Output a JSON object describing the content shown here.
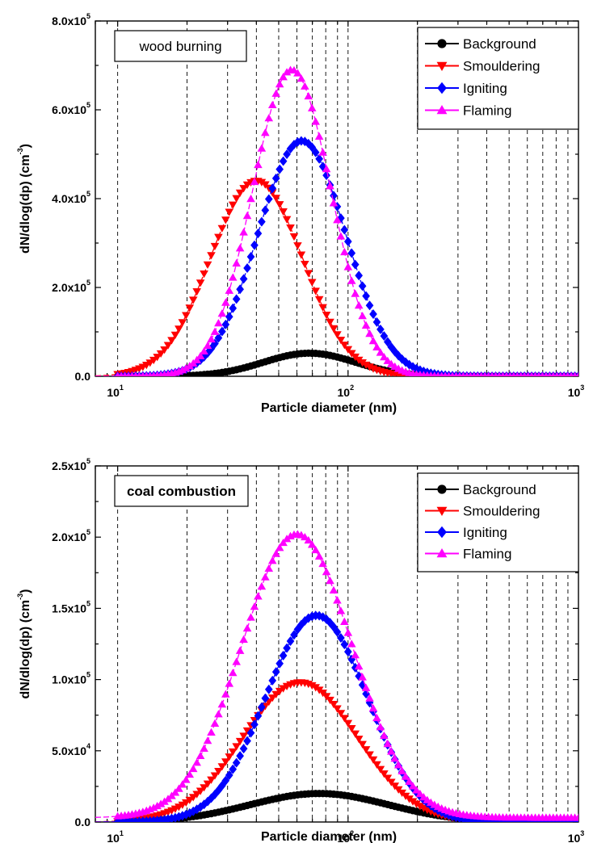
{
  "chart_data": [
    {
      "type": "line",
      "x_scale": "log",
      "xlim": [
        8,
        1000
      ],
      "ylim": [
        0,
        800000
      ],
      "grid": "dashed vertical lines at 10, 20, 30, 40, 50, 60, 70, 80, 90, 100, 200, 300, 400, 500, 600, 700, 800, 900",
      "legend_position": "top-right",
      "box_label": "wood burning",
      "xlabel": "Particle diameter (nm)",
      "ylabel": {
        "main": "dN/dlog(dp) (cm",
        "sup": "-3",
        "end": ")"
      },
      "x_ticks": [
        {
          "value": 10,
          "base": "10",
          "exp": "1"
        },
        {
          "value": 100,
          "base": "10",
          "exp": "2"
        },
        {
          "value": 1000,
          "base": "10",
          "exp": "3"
        }
      ],
      "y_ticks": [
        {
          "value": 0,
          "label": "0.0",
          "exp": ""
        },
        {
          "value": 200000,
          "label": "2.0x10",
          "exp": "5"
        },
        {
          "value": 400000,
          "label": "4.0x10",
          "exp": "5"
        },
        {
          "value": 600000,
          "label": "6.0x10",
          "exp": "5"
        },
        {
          "value": 800000,
          "label": "8.0x10",
          "exp": "5"
        }
      ],
      "series": [
        {
          "name": "Background",
          "color": "#000000",
          "marker": "circle",
          "peak_x": 68,
          "peak_y": 52000,
          "sigma": 0.2
        },
        {
          "name": "Smouldering",
          "color": "#ff0000",
          "marker": "triangle-down",
          "peak_x": 40,
          "peak_y": 440000,
          "sigma": 0.2
        },
        {
          "name": "Igniting",
          "color": "#0000ff",
          "marker": "diamond",
          "peak_x": 63,
          "peak_y": 530000,
          "sigma": 0.19
        },
        {
          "name": "Flaming",
          "color": "#ff00ff",
          "marker": "triangle-up",
          "peak_x": 57,
          "peak_y": 690000,
          "sigma": 0.17
        }
      ]
    },
    {
      "type": "line",
      "x_scale": "log",
      "xlim": [
        8,
        1000
      ],
      "ylim": [
        0,
        250000
      ],
      "grid": "dashed vertical lines at 10, 20, 30, 40, 50, 60, 70, 80, 90, 100, 200, 300, 400, 500, 600, 700, 800, 900",
      "legend_position": "top-right",
      "box_label": "coal combustion",
      "xlabel": "Particle diameter (nm)",
      "ylabel": {
        "main": "dN/dlog(dp) (cm",
        "sup": "-3",
        "end": ")"
      },
      "x_ticks": [
        {
          "value": 10,
          "base": "10",
          "exp": "1"
        },
        {
          "value": 100,
          "base": "10",
          "exp": "2"
        },
        {
          "value": 1000,
          "base": "10",
          "exp": "3"
        }
      ],
      "y_ticks": [
        {
          "value": 0,
          "label": "0.0",
          "exp": ""
        },
        {
          "value": 50000,
          "label": "5.0x10",
          "exp": "4"
        },
        {
          "value": 100000,
          "label": "1.0x10",
          "exp": "5"
        },
        {
          "value": 150000,
          "label": "1.5x10",
          "exp": "5"
        },
        {
          "value": 200000,
          "label": "2.0x10",
          "exp": "5"
        },
        {
          "value": 250000,
          "label": "2.5x10",
          "exp": "5"
        }
      ],
      "series": [
        {
          "name": "Background",
          "color": "#000000",
          "marker": "circle",
          "peak_x": 75,
          "peak_y": 20000,
          "sigma": 0.3
        },
        {
          "name": "Smouldering",
          "color": "#ff0000",
          "marker": "triangle-down",
          "peak_x": 62,
          "peak_y": 98000,
          "sigma": 0.25
        },
        {
          "name": "Igniting",
          "color": "#0000ff",
          "marker": "diamond",
          "peak_x": 73,
          "peak_y": 145000,
          "sigma": 0.22
        },
        {
          "name": "Flaming",
          "color": "#ff00ff",
          "marker": "triangle-up",
          "peak_x": 60,
          "peak_y": 202000,
          "sigma": 0.24,
          "baseline_y": 3000
        }
      ]
    }
  ]
}
